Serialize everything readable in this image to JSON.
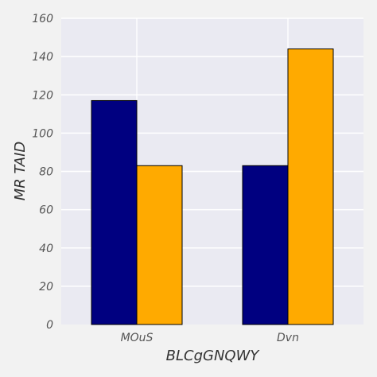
{
  "chart_data": {
    "type": "bar",
    "categories": [
      "MOuS",
      "Dvn"
    ],
    "series": [
      {
        "values": [
          117,
          83
        ],
        "color": "#000080"
      },
      {
        "values": [
          83,
          144
        ],
        "color": "#ffaa00"
      }
    ],
    "xlabel": "BLCgGNQWY",
    "ylabel": "MR TAID",
    "ylim": [
      0,
      160
    ],
    "yticks": [
      0,
      20,
      40,
      60,
      80,
      100,
      120,
      140,
      160
    ],
    "grid": true,
    "plot_background": "#eaeaf2",
    "grid_color": "#ffffff"
  }
}
